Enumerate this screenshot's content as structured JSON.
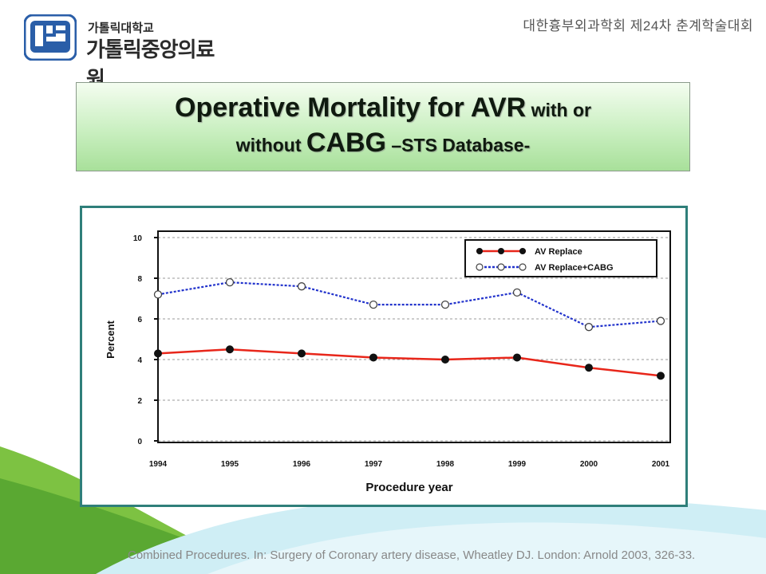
{
  "header": {
    "logo_small": "가톨릭대학교",
    "logo_large": "가톨릭중앙의료원",
    "conference": "대한흉부외과학회 제24차 춘계학술대회"
  },
  "title": {
    "line1_main": "Operative Mortality for AVR",
    "line1_small": " with or",
    "line2_small_a": "without ",
    "line2_main": "CABG",
    "line2_small_b": " –STS Database-"
  },
  "citation": "Combined Procedures. In: Surgery of Coronary artery disease, Wheatley DJ. London: Arnold 2003, 326-33.",
  "colors": {
    "av_replace": "#e8261a",
    "av_replace_cabg": "#2233cc",
    "frame": "#2f7f7a",
    "title_green": "#b8e8ab"
  },
  "chart_data": {
    "type": "line",
    "x": [
      "1994",
      "1995",
      "1996",
      "1997",
      "1998",
      "1999",
      "2000",
      "2001"
    ],
    "xlabel": "Procedure year",
    "ylabel": "Percent",
    "ylim": [
      0,
      10
    ],
    "yticks": [
      "0",
      "2",
      "4",
      "6",
      "8",
      "10"
    ],
    "grid": true,
    "legend_position": "top-right",
    "series": [
      {
        "name": "AV Replace",
        "values": [
          4.3,
          4.5,
          4.3,
          4.1,
          4.0,
          4.1,
          3.6,
          3.2
        ],
        "marker": "filled"
      },
      {
        "name": "AV Replace+CABG",
        "values": [
          7.2,
          7.8,
          7.6,
          6.7,
          6.7,
          7.3,
          5.6,
          5.9
        ],
        "marker": "open"
      }
    ]
  }
}
